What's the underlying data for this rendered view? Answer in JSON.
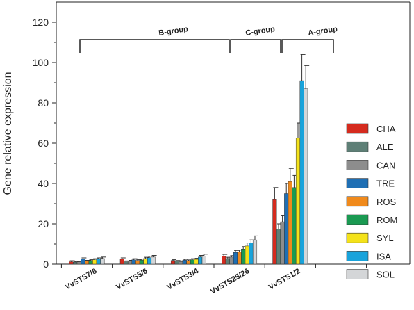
{
  "chart_data": {
    "type": "bar",
    "ylabel": "Gene relative expression",
    "xlabel": "",
    "ylim": [
      0,
      130
    ],
    "yticks": [
      0,
      20,
      40,
      60,
      80,
      100,
      120
    ],
    "categories": [
      "VvSTS7/8",
      "VvSTS5/6",
      "VvSTS3/4",
      "VvSTS25/26",
      "VvSTS1/2"
    ],
    "legend_position": "right",
    "series": [
      {
        "name": "CHA",
        "color": "#d52b1e",
        "values": [
          1.2,
          2.5,
          1.8,
          4.0,
          32.0
        ],
        "errors": [
          0.5,
          0.6,
          0.4,
          0.8,
          6.0
        ]
      },
      {
        "name": "ALE",
        "color": "#5e7f76",
        "values": [
          1.0,
          1.2,
          1.5,
          2.8,
          17.5
        ],
        "errors": [
          0.3,
          0.4,
          0.3,
          0.6,
          2.5
        ]
      },
      {
        "name": "CAN",
        "color": "#8d8d8d",
        "values": [
          1.1,
          1.5,
          1.3,
          3.5,
          21.0
        ],
        "errors": [
          0.3,
          0.4,
          0.3,
          0.7,
          3.0
        ]
      },
      {
        "name": "TRE",
        "color": "#1f6fb4",
        "values": [
          2.5,
          2.2,
          2.0,
          5.8,
          35.0
        ],
        "errors": [
          0.6,
          0.5,
          0.4,
          1.0,
          5.0
        ]
      },
      {
        "name": "ROS",
        "color": "#f08a1c",
        "values": [
          1.5,
          1.8,
          1.7,
          6.0,
          41.0
        ],
        "errors": [
          0.4,
          0.4,
          0.4,
          1.0,
          6.5
        ]
      },
      {
        "name": "ROM",
        "color": "#1a9a52",
        "values": [
          1.8,
          2.0,
          2.2,
          7.5,
          38.0
        ],
        "errors": [
          0.4,
          0.5,
          0.5,
          1.2,
          6.0
        ]
      },
      {
        "name": "SYL",
        "color": "#f4e21a",
        "values": [
          2.2,
          2.8,
          2.4,
          9.0,
          62.5
        ],
        "errors": [
          0.5,
          0.6,
          0.5,
          1.5,
          7.5
        ]
      },
      {
        "name": "ISA",
        "color": "#19a3db",
        "values": [
          2.5,
          3.2,
          3.5,
          10.5,
          91.0
        ],
        "errors": [
          0.6,
          0.7,
          0.8,
          1.5,
          13.0
        ]
      },
      {
        "name": "SOL",
        "color": "#d4d6d8",
        "values": [
          2.8,
          3.5,
          4.0,
          12.0,
          87.0
        ],
        "errors": [
          0.7,
          0.8,
          0.9,
          2.0,
          11.5
        ]
      }
    ],
    "annotations": [
      {
        "label": "B-group",
        "categories": [
          "VvSTS7/8",
          "VvSTS5/6",
          "VvSTS3/4"
        ]
      },
      {
        "label": "C-group",
        "categories": [
          "VvSTS25/26"
        ]
      },
      {
        "label": "A-group",
        "categories": [
          "VvSTS1/2"
        ]
      }
    ],
    "grid": false
  }
}
